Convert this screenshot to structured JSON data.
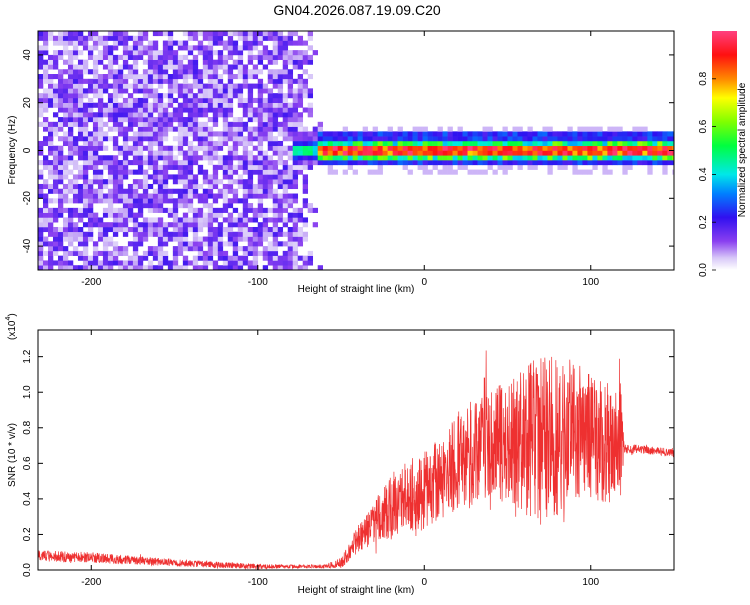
{
  "title": "GN04.2026.087.19.09.C20",
  "chart_data": [
    {
      "type": "heatmap",
      "xlabel": "Height of straight line (km)",
      "ylabel": "Frequency (Hz)",
      "xlim": [
        -232,
        150
      ],
      "ylim": [
        -50,
        50
      ],
      "xticks": [
        -200,
        -100,
        0,
        100
      ],
      "yticks": [
        -40,
        -20,
        0,
        20,
        40
      ],
      "colorbar": {
        "label": "Normalized spectral amplitude",
        "range": [
          0,
          1
        ],
        "ticks": [
          0.0,
          0.2,
          0.4,
          0.6,
          0.8
        ]
      },
      "regions": [
        {
          "name": "broadband noise",
          "x_range": [
            -232,
            -60
          ],
          "y_range": [
            -50,
            50
          ],
          "amplitude_approx": 0.15
        },
        {
          "name": "signal band",
          "x_range": [
            -78,
            150
          ],
          "center_frequency": 0.5,
          "half_width": 4,
          "amplitude_approx": 0.95
        }
      ]
    },
    {
      "type": "line",
      "xlabel": "Height of straight line (km)",
      "ylabel": "SNR (10 * v/v)",
      "multiplier": "(x10",
      "multiplier_exp": "4",
      "xlim": [
        -232,
        150
      ],
      "ylim": [
        0,
        1.35
      ],
      "xticks": [
        -200,
        -100,
        0,
        100
      ],
      "yticks": [
        0.0,
        0.2,
        0.4,
        0.6,
        0.8,
        1.0,
        1.2
      ],
      "series": [
        {
          "name": "SNR",
          "color": "#ee3030",
          "envelope": {
            "x": [
              -232,
              -200,
              -150,
              -100,
              -80,
              -60,
              -50,
              -45,
              -40,
              -35,
              -30,
              -25,
              -20,
              -15,
              -10,
              -5,
              0,
              5,
              10,
              20,
              30,
              40,
              50,
              60,
              70,
              80,
              90,
              100,
              110,
              118,
              120,
              130,
              140,
              150
            ],
            "mean": [
              0.08,
              0.07,
              0.04,
              0.02,
              0.02,
              0.02,
              0.04,
              0.1,
              0.18,
              0.22,
              0.28,
              0.32,
              0.35,
              0.4,
              0.42,
              0.4,
              0.45,
              0.48,
              0.52,
              0.62,
              0.66,
              0.7,
              0.72,
              0.74,
              0.72,
              0.75,
              0.78,
              0.74,
              0.72,
              0.72,
              0.68,
              0.68,
              0.67,
              0.66
            ],
            "amp": [
              0.03,
              0.03,
              0.02,
              0.015,
              0.01,
              0.01,
              0.03,
              0.05,
              0.08,
              0.1,
              0.12,
              0.14,
              0.18,
              0.2,
              0.18,
              0.22,
              0.22,
              0.22,
              0.24,
              0.28,
              0.3,
              0.32,
              0.34,
              0.42,
              0.48,
              0.46,
              0.4,
              0.36,
              0.34,
              0.34,
              0.03,
              0.025,
              0.025,
              0.025
            ]
          }
        }
      ]
    }
  ]
}
